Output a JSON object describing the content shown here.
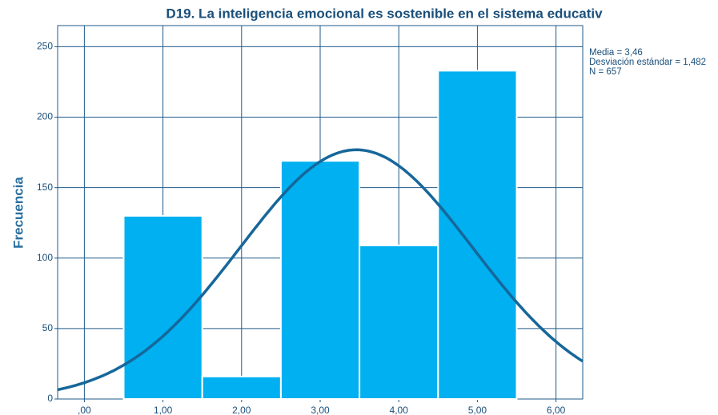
{
  "chart_data": {
    "type": "histogram",
    "title": "D19. La inteligencia emocional es sostenible en el sistema educativ",
    "ylabel": "Frecuencia",
    "bins": [
      0.5,
      1.5,
      2.5,
      3.5,
      4.5,
      5.5
    ],
    "counts": [
      130,
      16,
      169,
      109,
      233
    ],
    "color": "#00b0f0",
    "curve_color": "#16679a",
    "stats": {
      "mean": 3.46,
      "sd": 1.482,
      "n": 657
    },
    "stats_labels": [
      "Media = 3,46",
      "Desviación estándar = 1,482",
      "N = 657"
    ],
    "xlim": [
      -0.34,
      6.34
    ],
    "xticks": [
      {
        "value": 0,
        "label": ",00"
      },
      {
        "value": 1,
        "label": "1,00"
      },
      {
        "value": 2,
        "label": "2,00"
      },
      {
        "value": 3,
        "label": "3,00"
      },
      {
        "value": 4,
        "label": "4,00"
      },
      {
        "value": 5,
        "label": "5,00"
      },
      {
        "value": 6,
        "label": "6,00"
      }
    ],
    "ylim": [
      0,
      265
    ],
    "yticks": [
      0,
      50,
      100,
      150,
      200,
      250
    ],
    "grid": true
  }
}
